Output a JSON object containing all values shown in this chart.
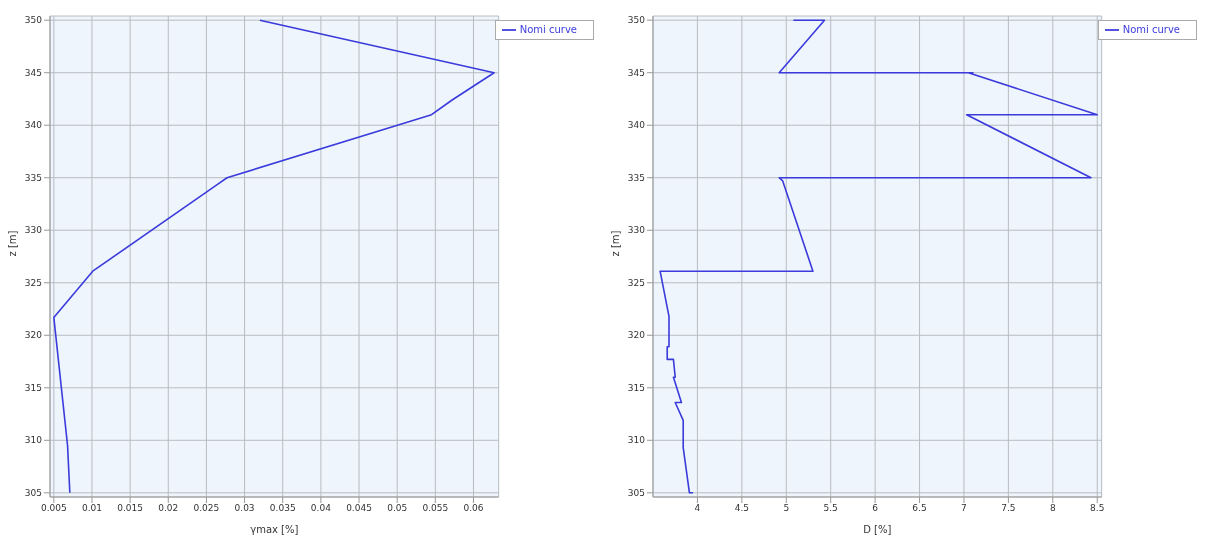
{
  "chart_data": [
    {
      "type": "line",
      "xlabel": "γmax [%]",
      "ylabel": "z [m]",
      "xlim": [
        0.0045,
        0.0633
      ],
      "xticks": [
        {
          "value": 0.005,
          "label": "0.005"
        },
        {
          "value": 0.01,
          "label": "0.01"
        },
        {
          "value": 0.015,
          "label": "0.015"
        },
        {
          "value": 0.02,
          "label": "0.02"
        },
        {
          "value": 0.025,
          "label": "0.025"
        },
        {
          "value": 0.03,
          "label": "0.03"
        },
        {
          "value": 0.035,
          "label": "0.035"
        },
        {
          "value": 0.04,
          "label": "0.04"
        },
        {
          "value": 0.045,
          "label": "0.045"
        },
        {
          "value": 0.05,
          "label": "0.05"
        },
        {
          "value": 0.055,
          "label": "0.055"
        },
        {
          "value": 0.06,
          "label": "0.06"
        }
      ],
      "ylim": [
        304.6,
        350.4
      ],
      "yticks": [
        305,
        310,
        315,
        320,
        325,
        330,
        335,
        340,
        345,
        350
      ],
      "grid": true,
      "legend": "top right",
      "marker": "none",
      "line_style": "solid",
      "series": [
        {
          "name": "Nomi curve",
          "color": "#3b3bdc",
          "x": [
            0.032,
            0.0627,
            0.0572,
            0.0545,
            0.0277,
            0.0265,
            0.0101,
            0.005,
            0.0068,
            0.0071
          ],
          "values": [
            350,
            345,
            342.4,
            341,
            335,
            334.4,
            326.1,
            321.7,
            309.5,
            305
          ]
        }
      ]
    },
    {
      "type": "line",
      "xlabel": "D [%]",
      "ylabel": "z [m]",
      "xlim": [
        3.5,
        8.55
      ],
      "xticks": [
        4,
        4.5,
        5,
        5.5,
        6,
        6.5,
        7,
        7.5,
        8,
        8.5
      ],
      "ylim": [
        304.6,
        350.4
      ],
      "yticks": [
        305,
        310,
        315,
        320,
        325,
        330,
        335,
        340,
        345,
        350
      ],
      "grid": true,
      "legend": "top right",
      "marker": "none",
      "line_style": "solid",
      "series": [
        {
          "name": "Nomi curve",
          "color": "#3b3bdc",
          "x": [
            5.08,
            5.43,
            4.92,
            7.1,
            7.05,
            8.5,
            7.03,
            8.43,
            4.92,
            4.96,
            5.3,
            5.23,
            3.58,
            3.68,
            3.68,
            3.66,
            3.66,
            3.73,
            3.75,
            3.73,
            3.82,
            3.75,
            3.84,
            3.84,
            3.91,
            3.95
          ],
          "values": [
            350,
            350,
            345,
            345,
            345,
            341,
            341,
            335,
            335,
            334.7,
            326.1,
            326.1,
            326.1,
            321.8,
            318.9,
            318.9,
            317.7,
            317.7,
            316,
            316,
            313.6,
            313.6,
            311.9,
            309.3,
            305,
            305
          ]
        }
      ]
    }
  ]
}
